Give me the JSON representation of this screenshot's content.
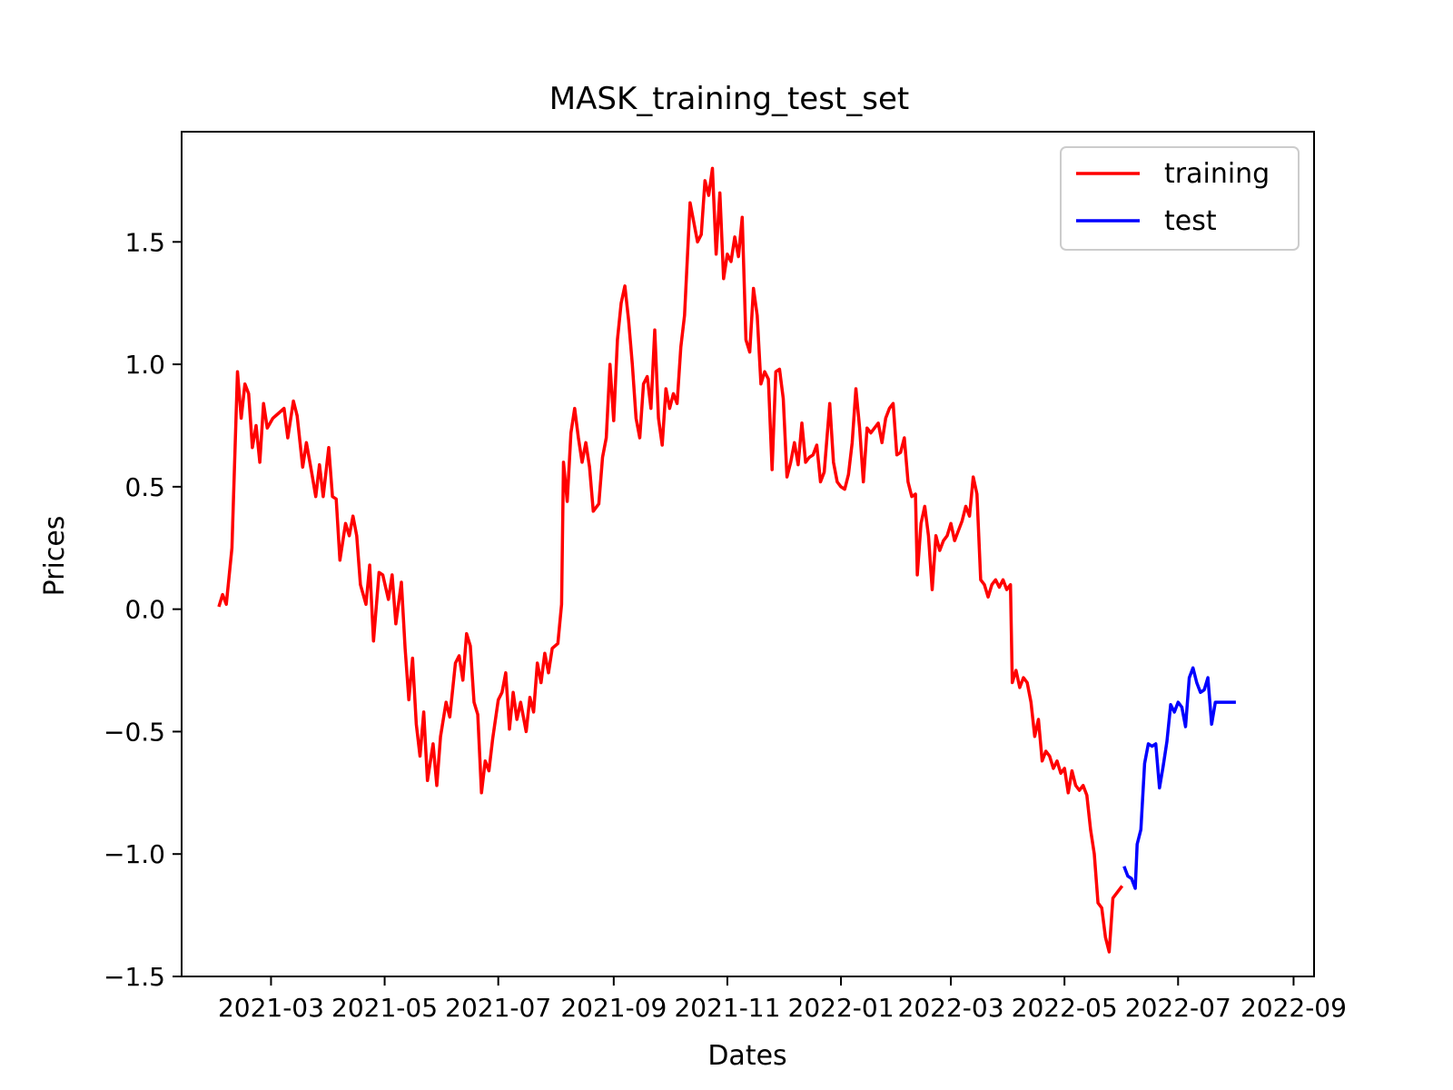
{
  "chart_data": {
    "type": "line",
    "title": "MASK_training_test_set",
    "xlabel": "Dates",
    "ylabel": "Prices",
    "x_range": [
      "2021-01-12",
      "2022-09-12"
    ],
    "ylim": [
      -1.5,
      1.95
    ],
    "x_ticks": [
      "2021-03",
      "2021-05",
      "2021-07",
      "2021-09",
      "2021-11",
      "2022-01",
      "2022-03",
      "2022-05",
      "2022-07",
      "2022-09"
    ],
    "y_ticks": [
      {
        "value": 1.5,
        "label": "1.5"
      },
      {
        "value": 1.0,
        "label": "1.0"
      },
      {
        "value": 0.5,
        "label": "0.5"
      },
      {
        "value": 0.0,
        "label": "0.0"
      },
      {
        "value": -0.5,
        "label": "−0.5"
      },
      {
        "value": -1.0,
        "label": "−1.0"
      },
      {
        "value": -1.5,
        "label": "−1.5"
      }
    ],
    "grid": false,
    "legend_position": "top-right",
    "series": [
      {
        "name": "training",
        "color": "#ff0000",
        "points": [
          [
            "2021-02-01",
            0.01
          ],
          [
            "2021-02-03",
            0.06
          ],
          [
            "2021-02-05",
            0.02
          ],
          [
            "2021-02-08",
            0.25
          ],
          [
            "2021-02-11",
            0.97
          ],
          [
            "2021-02-13",
            0.78
          ],
          [
            "2021-02-15",
            0.92
          ],
          [
            "2021-02-17",
            0.88
          ],
          [
            "2021-02-19",
            0.66
          ],
          [
            "2021-02-21",
            0.75
          ],
          [
            "2021-02-23",
            0.6
          ],
          [
            "2021-02-25",
            0.84
          ],
          [
            "2021-02-27",
            0.74
          ],
          [
            "2021-03-02",
            0.78
          ],
          [
            "2021-03-05",
            0.8
          ],
          [
            "2021-03-08",
            0.82
          ],
          [
            "2021-03-10",
            0.7
          ],
          [
            "2021-03-13",
            0.85
          ],
          [
            "2021-03-15",
            0.79
          ],
          [
            "2021-03-18",
            0.58
          ],
          [
            "2021-03-20",
            0.68
          ],
          [
            "2021-03-23",
            0.55
          ],
          [
            "2021-03-25",
            0.46
          ],
          [
            "2021-03-27",
            0.59
          ],
          [
            "2021-03-29",
            0.46
          ],
          [
            "2021-04-01",
            0.66
          ],
          [
            "2021-04-03",
            0.46
          ],
          [
            "2021-04-05",
            0.45
          ],
          [
            "2021-04-07",
            0.2
          ],
          [
            "2021-04-10",
            0.35
          ],
          [
            "2021-04-12",
            0.3
          ],
          [
            "2021-04-14",
            0.38
          ],
          [
            "2021-04-16",
            0.3
          ],
          [
            "2021-04-18",
            0.1
          ],
          [
            "2021-04-21",
            0.02
          ],
          [
            "2021-04-23",
            0.18
          ],
          [
            "2021-04-25",
            -0.13
          ],
          [
            "2021-04-28",
            0.15
          ],
          [
            "2021-04-30",
            0.14
          ],
          [
            "2021-05-03",
            0.04
          ],
          [
            "2021-05-05",
            0.14
          ],
          [
            "2021-05-07",
            -0.06
          ],
          [
            "2021-05-10",
            0.11
          ],
          [
            "2021-05-12",
            -0.16
          ],
          [
            "2021-05-14",
            -0.37
          ],
          [
            "2021-05-16",
            -0.2
          ],
          [
            "2021-05-18",
            -0.47
          ],
          [
            "2021-05-20",
            -0.6
          ],
          [
            "2021-05-22",
            -0.42
          ],
          [
            "2021-05-24",
            -0.7
          ],
          [
            "2021-05-27",
            -0.55
          ],
          [
            "2021-05-29",
            -0.72
          ],
          [
            "2021-05-31",
            -0.52
          ],
          [
            "2021-06-03",
            -0.38
          ],
          [
            "2021-06-05",
            -0.44
          ],
          [
            "2021-06-08",
            -0.22
          ],
          [
            "2021-06-10",
            -0.19
          ],
          [
            "2021-06-12",
            -0.29
          ],
          [
            "2021-06-14",
            -0.1
          ],
          [
            "2021-06-16",
            -0.15
          ],
          [
            "2021-06-18",
            -0.38
          ],
          [
            "2021-06-20",
            -0.43
          ],
          [
            "2021-06-22",
            -0.75
          ],
          [
            "2021-06-24",
            -0.62
          ],
          [
            "2021-06-26",
            -0.66
          ],
          [
            "2021-06-28",
            -0.53
          ],
          [
            "2021-07-01",
            -0.37
          ],
          [
            "2021-07-03",
            -0.34
          ],
          [
            "2021-07-05",
            -0.26
          ],
          [
            "2021-07-07",
            -0.49
          ],
          [
            "2021-07-09",
            -0.34
          ],
          [
            "2021-07-11",
            -0.45
          ],
          [
            "2021-07-13",
            -0.38
          ],
          [
            "2021-07-16",
            -0.5
          ],
          [
            "2021-07-18",
            -0.36
          ],
          [
            "2021-07-20",
            -0.42
          ],
          [
            "2021-07-22",
            -0.22
          ],
          [
            "2021-07-24",
            -0.3
          ],
          [
            "2021-07-26",
            -0.18
          ],
          [
            "2021-07-28",
            -0.26
          ],
          [
            "2021-07-30",
            -0.16
          ],
          [
            "2021-08-02",
            -0.14
          ],
          [
            "2021-08-04",
            0.02
          ],
          [
            "2021-08-05",
            0.6
          ],
          [
            "2021-08-07",
            0.44
          ],
          [
            "2021-08-09",
            0.72
          ],
          [
            "2021-08-11",
            0.82
          ],
          [
            "2021-08-13",
            0.7
          ],
          [
            "2021-08-15",
            0.6
          ],
          [
            "2021-08-17",
            0.68
          ],
          [
            "2021-08-19",
            0.58
          ],
          [
            "2021-08-21",
            0.4
          ],
          [
            "2021-08-24",
            0.43
          ],
          [
            "2021-08-26",
            0.62
          ],
          [
            "2021-08-28",
            0.7
          ],
          [
            "2021-08-30",
            1.0
          ],
          [
            "2021-09-01",
            0.77
          ],
          [
            "2021-09-03",
            1.1
          ],
          [
            "2021-09-05",
            1.25
          ],
          [
            "2021-09-07",
            1.32
          ],
          [
            "2021-09-09",
            1.18
          ],
          [
            "2021-09-11",
            1.0
          ],
          [
            "2021-09-13",
            0.78
          ],
          [
            "2021-09-15",
            0.7
          ],
          [
            "2021-09-17",
            0.92
          ],
          [
            "2021-09-19",
            0.95
          ],
          [
            "2021-09-21",
            0.82
          ],
          [
            "2021-09-23",
            1.14
          ],
          [
            "2021-09-25",
            0.78
          ],
          [
            "2021-09-27",
            0.67
          ],
          [
            "2021-09-29",
            0.9
          ],
          [
            "2021-10-01",
            0.82
          ],
          [
            "2021-10-03",
            0.88
          ],
          [
            "2021-10-05",
            0.84
          ],
          [
            "2021-10-07",
            1.07
          ],
          [
            "2021-10-09",
            1.2
          ],
          [
            "2021-10-12",
            1.66
          ],
          [
            "2021-10-14",
            1.58
          ],
          [
            "2021-10-16",
            1.5
          ],
          [
            "2021-10-18",
            1.53
          ],
          [
            "2021-10-20",
            1.75
          ],
          [
            "2021-10-22",
            1.69
          ],
          [
            "2021-10-24",
            1.8
          ],
          [
            "2021-10-26",
            1.45
          ],
          [
            "2021-10-28",
            1.7
          ],
          [
            "2021-10-30",
            1.35
          ],
          [
            "2021-11-01",
            1.45
          ],
          [
            "2021-11-03",
            1.42
          ],
          [
            "2021-11-05",
            1.52
          ],
          [
            "2021-11-07",
            1.44
          ],
          [
            "2021-11-09",
            1.6
          ],
          [
            "2021-11-11",
            1.1
          ],
          [
            "2021-11-13",
            1.05
          ],
          [
            "2021-11-15",
            1.31
          ],
          [
            "2021-11-17",
            1.2
          ],
          [
            "2021-11-19",
            0.92
          ],
          [
            "2021-11-21",
            0.97
          ],
          [
            "2021-11-23",
            0.94
          ],
          [
            "2021-11-25",
            0.57
          ],
          [
            "2021-11-27",
            0.97
          ],
          [
            "2021-11-29",
            0.98
          ],
          [
            "2021-12-01",
            0.86
          ],
          [
            "2021-12-03",
            0.54
          ],
          [
            "2021-12-05",
            0.6
          ],
          [
            "2021-12-07",
            0.68
          ],
          [
            "2021-12-09",
            0.59
          ],
          [
            "2021-12-11",
            0.76
          ],
          [
            "2021-12-13",
            0.6
          ],
          [
            "2021-12-15",
            0.62
          ],
          [
            "2021-12-17",
            0.63
          ],
          [
            "2021-12-19",
            0.67
          ],
          [
            "2021-12-21",
            0.52
          ],
          [
            "2021-12-23",
            0.56
          ],
          [
            "2021-12-26",
            0.84
          ],
          [
            "2021-12-28",
            0.6
          ],
          [
            "2021-12-30",
            0.52
          ],
          [
            "2022-01-01",
            0.5
          ],
          [
            "2022-01-03",
            0.49
          ],
          [
            "2022-01-05",
            0.55
          ],
          [
            "2022-01-07",
            0.68
          ],
          [
            "2022-01-09",
            0.9
          ],
          [
            "2022-01-11",
            0.74
          ],
          [
            "2022-01-13",
            0.52
          ],
          [
            "2022-01-15",
            0.74
          ],
          [
            "2022-01-17",
            0.72
          ],
          [
            "2022-01-19",
            0.74
          ],
          [
            "2022-01-21",
            0.76
          ],
          [
            "2022-01-23",
            0.68
          ],
          [
            "2022-01-25",
            0.78
          ],
          [
            "2022-01-27",
            0.82
          ],
          [
            "2022-01-29",
            0.84
          ],
          [
            "2022-01-31",
            0.63
          ],
          [
            "2022-02-02",
            0.64
          ],
          [
            "2022-02-04",
            0.7
          ],
          [
            "2022-02-06",
            0.52
          ],
          [
            "2022-02-08",
            0.46
          ],
          [
            "2022-02-10",
            0.47
          ],
          [
            "2022-02-11",
            0.14
          ],
          [
            "2022-02-13",
            0.35
          ],
          [
            "2022-02-15",
            0.42
          ],
          [
            "2022-02-17",
            0.3
          ],
          [
            "2022-02-19",
            0.08
          ],
          [
            "2022-02-21",
            0.3
          ],
          [
            "2022-02-23",
            0.24
          ],
          [
            "2022-02-25",
            0.28
          ],
          [
            "2022-02-27",
            0.3
          ],
          [
            "2022-03-01",
            0.35
          ],
          [
            "2022-03-03",
            0.28
          ],
          [
            "2022-03-05",
            0.32
          ],
          [
            "2022-03-07",
            0.36
          ],
          [
            "2022-03-09",
            0.42
          ],
          [
            "2022-03-11",
            0.38
          ],
          [
            "2022-03-13",
            0.54
          ],
          [
            "2022-03-15",
            0.47
          ],
          [
            "2022-03-17",
            0.12
          ],
          [
            "2022-03-19",
            0.1
          ],
          [
            "2022-03-21",
            0.05
          ],
          [
            "2022-03-23",
            0.1
          ],
          [
            "2022-03-25",
            0.12
          ],
          [
            "2022-03-27",
            0.09
          ],
          [
            "2022-03-29",
            0.12
          ],
          [
            "2022-03-31",
            0.08
          ],
          [
            "2022-04-02",
            0.1
          ],
          [
            "2022-04-03",
            -0.3
          ],
          [
            "2022-04-05",
            -0.25
          ],
          [
            "2022-04-07",
            -0.32
          ],
          [
            "2022-04-09",
            -0.28
          ],
          [
            "2022-04-11",
            -0.3
          ],
          [
            "2022-04-13",
            -0.38
          ],
          [
            "2022-04-15",
            -0.52
          ],
          [
            "2022-04-17",
            -0.45
          ],
          [
            "2022-04-19",
            -0.62
          ],
          [
            "2022-04-21",
            -0.58
          ],
          [
            "2022-04-23",
            -0.6
          ],
          [
            "2022-04-25",
            -0.65
          ],
          [
            "2022-04-27",
            -0.62
          ],
          [
            "2022-04-29",
            -0.67
          ],
          [
            "2022-05-01",
            -0.65
          ],
          [
            "2022-05-03",
            -0.75
          ],
          [
            "2022-05-05",
            -0.66
          ],
          [
            "2022-05-07",
            -0.72
          ],
          [
            "2022-05-09",
            -0.74
          ],
          [
            "2022-05-11",
            -0.72
          ],
          [
            "2022-05-13",
            -0.76
          ],
          [
            "2022-05-15",
            -0.9
          ],
          [
            "2022-05-17",
            -1.0
          ],
          [
            "2022-05-19",
            -1.2
          ],
          [
            "2022-05-21",
            -1.22
          ],
          [
            "2022-05-23",
            -1.34
          ],
          [
            "2022-05-25",
            -1.4
          ],
          [
            "2022-05-27",
            -1.18
          ],
          [
            "2022-05-29",
            -1.16
          ],
          [
            "2022-06-01",
            -1.13
          ]
        ]
      },
      {
        "name": "test",
        "color": "#0000ff",
        "points": [
          [
            "2022-06-02",
            -1.05
          ],
          [
            "2022-06-04",
            -1.09
          ],
          [
            "2022-06-06",
            -1.1
          ],
          [
            "2022-06-08",
            -1.14
          ],
          [
            "2022-06-09",
            -0.96
          ],
          [
            "2022-06-11",
            -0.9
          ],
          [
            "2022-06-13",
            -0.63
          ],
          [
            "2022-06-15",
            -0.55
          ],
          [
            "2022-06-17",
            -0.56
          ],
          [
            "2022-06-19",
            -0.55
          ],
          [
            "2022-06-21",
            -0.73
          ],
          [
            "2022-06-23",
            -0.64
          ],
          [
            "2022-06-25",
            -0.54
          ],
          [
            "2022-06-27",
            -0.39
          ],
          [
            "2022-06-29",
            -0.42
          ],
          [
            "2022-07-01",
            -0.38
          ],
          [
            "2022-07-03",
            -0.4
          ],
          [
            "2022-07-05",
            -0.48
          ],
          [
            "2022-07-07",
            -0.28
          ],
          [
            "2022-07-09",
            -0.24
          ],
          [
            "2022-07-11",
            -0.3
          ],
          [
            "2022-07-13",
            -0.34
          ],
          [
            "2022-07-15",
            -0.33
          ],
          [
            "2022-07-17",
            -0.28
          ],
          [
            "2022-07-19",
            -0.47
          ],
          [
            "2022-07-21",
            -0.38
          ],
          [
            "2022-07-23",
            -0.38
          ],
          [
            "2022-07-25",
            -0.38
          ],
          [
            "2022-07-28",
            -0.38
          ],
          [
            "2022-08-01",
            -0.38
          ]
        ]
      }
    ]
  }
}
